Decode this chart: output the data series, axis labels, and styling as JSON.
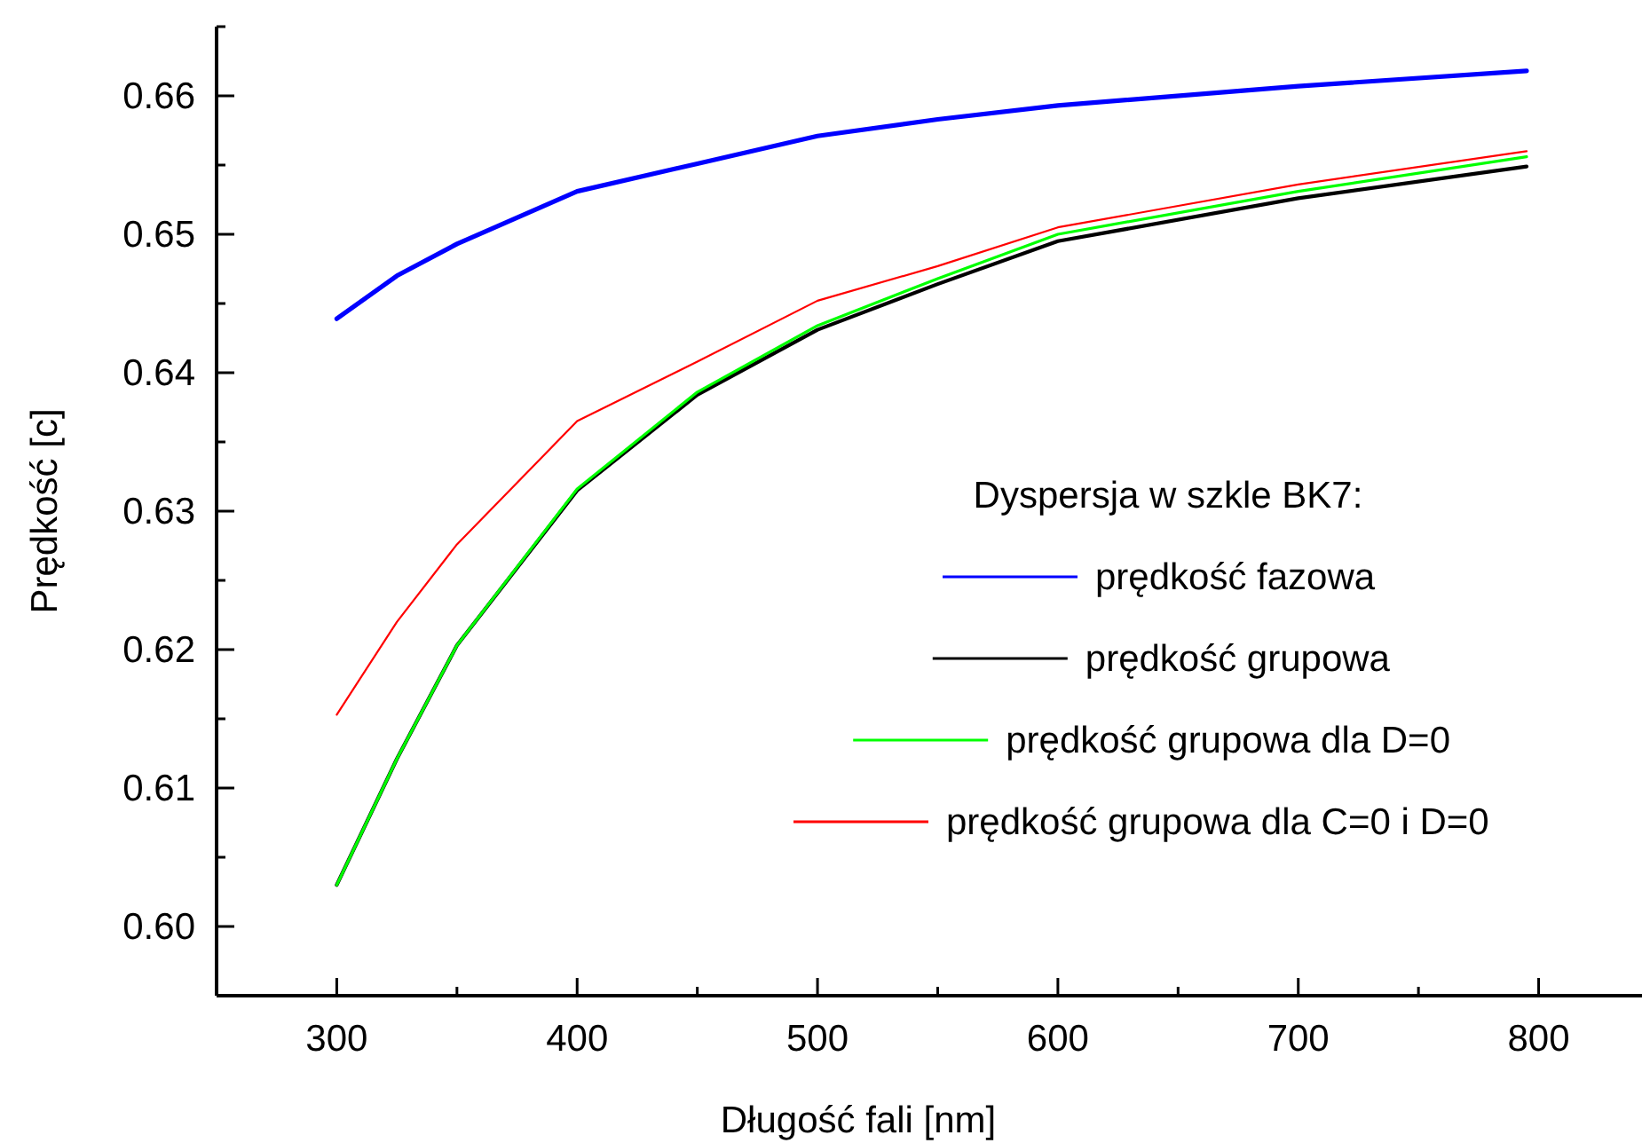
{
  "chart_data": {
    "type": "line",
    "xlabel": "Długość fali [nm]",
    "ylabel": "Prędkość [c]",
    "legend_title": "Dyspersja w szkle BK7:",
    "legend": "right",
    "grid": false,
    "marker": "none",
    "line_style": "solid",
    "xlim": [
      250,
      843
    ],
    "ylim": [
      0.595,
      0.665
    ],
    "xticks": [
      300,
      {
        "value": 350,
        "label": null
      },
      400,
      {
        "value": 450,
        "label": null
      },
      500,
      {
        "value": 550,
        "label": null
      },
      600,
      {
        "value": 650,
        "label": null
      },
      700,
      {
        "value": 750,
        "label": null
      },
      800
    ],
    "yticks": [
      {
        "value": 0.6,
        "label": "0.60"
      },
      {
        "value": 0.605,
        "label": null
      },
      0.61,
      {
        "value": 0.615,
        "label": null
      },
      0.62,
      {
        "value": 0.625,
        "label": null
      },
      0.63,
      {
        "value": 0.635,
        "label": null
      },
      0.64,
      {
        "value": 0.645,
        "label": null
      },
      0.65,
      {
        "value": 0.655,
        "label": null
      },
      0.66,
      {
        "value": 0.665,
        "label": null
      }
    ],
    "x": [
      300,
      325,
      350,
      400,
      450,
      500,
      550,
      600,
      700,
      795
    ],
    "series": [
      {
        "name": "prędkość fazowa",
        "color": "#0000ff",
        "values": [
          0.6439,
          0.647,
          0.6493,
          0.6531,
          0.6551,
          0.6571,
          0.6583,
          0.6593,
          0.6607,
          0.6618
        ]
      },
      {
        "name": "prędkość grupowa",
        "color": "#000000",
        "values": [
          0.603,
          0.6121,
          0.6203,
          0.6315,
          0.6384,
          0.6431,
          0.6464,
          0.6495,
          0.6526,
          0.6549
        ]
      },
      {
        "name": "prędkość grupowa dla D=0",
        "color": "#00ff00",
        "values": [
          0.603,
          0.6121,
          0.6203,
          0.6316,
          0.6386,
          0.6434,
          0.6468,
          0.65,
          0.6531,
          0.6556
        ]
      },
      {
        "name": "prędkość grupowa dla C=0 i D=0",
        "color": "#ff0000",
        "values": [
          0.6153,
          0.622,
          0.6276,
          0.6365,
          0.6408,
          0.6452,
          0.6477,
          0.6505,
          0.6536,
          0.656
        ]
      }
    ]
  }
}
